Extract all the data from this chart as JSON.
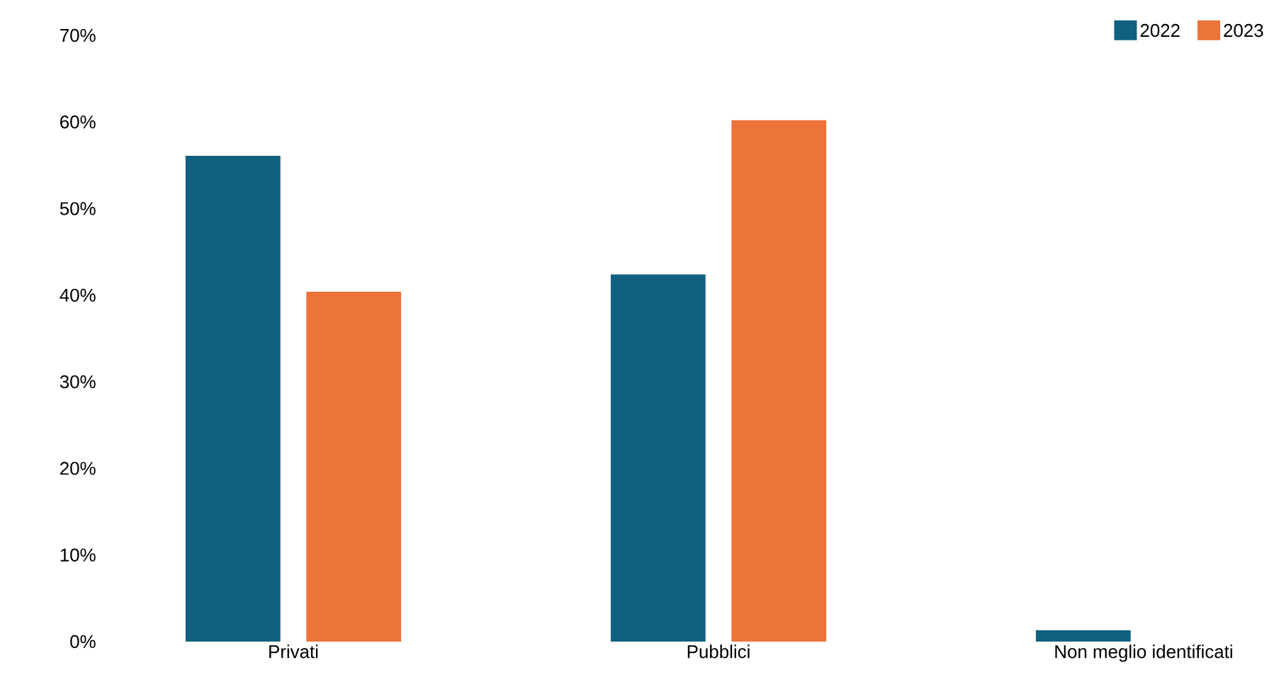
{
  "chart_data": {
    "type": "bar",
    "categories": [
      "Privati",
      "Pubblici",
      "Non meglio identificati"
    ],
    "series": [
      {
        "name": "2022",
        "color": "#12607f",
        "values": [
          56.1,
          42.4,
          1.3
        ]
      },
      {
        "name": "2023",
        "color": "#ec733a",
        "values": [
          40.4,
          60.2,
          0
        ]
      }
    ],
    "ylim": [
      0,
      70
    ],
    "yticks": [
      {
        "value": 0,
        "label": "0%"
      },
      {
        "value": 10,
        "label": "10%"
      },
      {
        "value": 20,
        "label": "20%"
      },
      {
        "value": 30,
        "label": "30%"
      },
      {
        "value": 40,
        "label": "40%"
      },
      {
        "value": 50,
        "label": "50%"
      },
      {
        "value": 60,
        "label": "60%"
      },
      {
        "value": 70,
        "label": "70%"
      }
    ],
    "legend": "top right",
    "grid": false
  }
}
